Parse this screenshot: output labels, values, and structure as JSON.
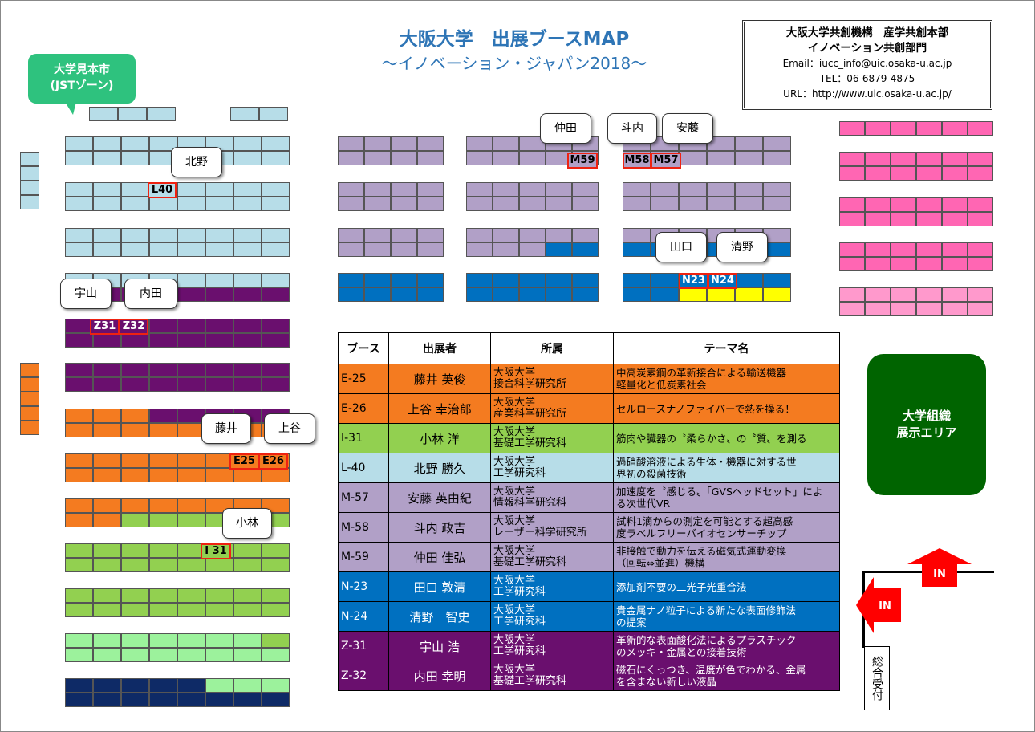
{
  "header": {
    "title": "大阪大学　出展ブースMAP",
    "subtitle": "～イノベーション・ジャパン2018～"
  },
  "contact": {
    "org1": "大阪大学共創機構　産学共創本部",
    "org2": "イノベーション共創部門",
    "email": "Email：iucc_info@uic.osaka-u.ac.jp",
    "tel": "TEL：06-6879-4875",
    "url": "URL：http://www.uic.osaka-u.ac.jp/"
  },
  "zones": {
    "jst_line1": "大学見本市",
    "jst_line2": "(JSTゾーン)",
    "exhibit_line1": "大学組織",
    "exhibit_line2": "展示エリア",
    "reception": "総合受付",
    "in_label": "IN"
  },
  "colors": {
    "lightblue": "#b7dde8",
    "lavender": "#b1a0c7",
    "blue": "#0070c0",
    "purple": "#6a0f6e",
    "orange": "#f47b20",
    "green": "#92d050",
    "lightgreen": "#9cf29c",
    "navy": "#0e2a66",
    "pink": "#ff66b3",
    "lightpink": "#ff99cc",
    "yellow": "#ffff00",
    "red": "#e21",
    "darkgreen": "#006400"
  },
  "callouts": [
    {
      "id": "kitano",
      "label": "北野"
    },
    {
      "id": "nakata",
      "label": "仲田"
    },
    {
      "id": "tonouchi",
      "label": "斗内"
    },
    {
      "id": "ando",
      "label": "安藤"
    },
    {
      "id": "taguchi",
      "label": "田口"
    },
    {
      "id": "kiyono",
      "label": "清野"
    },
    {
      "id": "uyama",
      "label": "宇山"
    },
    {
      "id": "uchida",
      "label": "内田"
    },
    {
      "id": "fujii",
      "label": "藤井"
    },
    {
      "id": "kamitani",
      "label": "上谷"
    },
    {
      "id": "kobayashi",
      "label": "小林"
    }
  ],
  "tags": [
    {
      "id": "L40",
      "label": "L40"
    },
    {
      "id": "M59",
      "label": "M59"
    },
    {
      "id": "M58",
      "label": "M58"
    },
    {
      "id": "M57",
      "label": "M57"
    },
    {
      "id": "N23",
      "label": "N23"
    },
    {
      "id": "N24",
      "label": "N24"
    },
    {
      "id": "Z31",
      "label": "Z31"
    },
    {
      "id": "Z32",
      "label": "Z32"
    },
    {
      "id": "E25",
      "label": "E25"
    },
    {
      "id": "E26",
      "label": "E26"
    },
    {
      "id": "I31",
      "label": "I 31"
    }
  ],
  "table": {
    "headers": [
      "ブース",
      "出展者",
      "所属",
      "テーマ名"
    ],
    "rows": [
      {
        "booth": "E-25",
        "name": "藤井 英俊",
        "aff1": "大阪大学",
        "aff2": "接合科学研究所",
        "theme1": "中高炭素鋼の革新接合による輸送機器",
        "theme2": "軽量化と低炭素社会",
        "color": "#f47b20",
        "text": "#000"
      },
      {
        "booth": "E-26",
        "name": "上谷 幸治郎",
        "aff1": "大阪大学",
        "aff2": "産業科学研究所",
        "theme1": "セルロースナノファイバーで熱を操る！",
        "theme2": "",
        "color": "#f47b20",
        "text": "#000"
      },
      {
        "booth": "I-31",
        "name": "小林 洋",
        "aff1": "大阪大学",
        "aff2": "基礎工学研究科",
        "theme1": "筋肉や臓器の〝柔らかさ〟の〝質〟を測る",
        "theme2": "",
        "color": "#92d050",
        "text": "#000"
      },
      {
        "booth": "L-40",
        "name": "北野 勝久",
        "aff1": "大阪大学",
        "aff2": "工学研究科",
        "theme1": "過硝酸溶液による生体・機器に対する世",
        "theme2": "界初の殺菌技術",
        "color": "#b7dde8",
        "text": "#000"
      },
      {
        "booth": "M-57",
        "name": "安藤 英由紀",
        "aff1": "大阪大学",
        "aff2": "情報科学研究科",
        "theme1": "加速度を〝感じる〟「GVSヘッドセット」によ",
        "theme2": "る次世代VR",
        "color": "#b1a0c7",
        "text": "#000"
      },
      {
        "booth": "M-58",
        "name": "斗内 政吉",
        "aff1": "大阪大学",
        "aff2": "レーザー科学研究所",
        "theme1": "試料1滴からの測定を可能とする超高感",
        "theme2": "度ラベルフリーバイオセンサーチップ",
        "color": "#b1a0c7",
        "text": "#000"
      },
      {
        "booth": "M-59",
        "name": "仲田 佳弘",
        "aff1": "大阪大学",
        "aff2": "基礎工学研究科",
        "theme1": "非接触で動力を伝える磁気式運動変換",
        "theme2": "（回転⇔並進）機構",
        "color": "#b1a0c7",
        "text": "#000"
      },
      {
        "booth": "N-23",
        "name": "田口 敦清",
        "aff1": "大阪大学",
        "aff2": "工学研究科",
        "theme1": "添加剤不要の二光子光重合法",
        "theme2": "",
        "color": "#0070c0",
        "text": "#fff"
      },
      {
        "booth": "N-24",
        "name": "清野　智史",
        "aff1": "大阪大学",
        "aff2": "工学研究科",
        "theme1": "貴金属ナノ粒子による新たな表面修飾法",
        "theme2": "の提案",
        "color": "#0070c0",
        "text": "#fff"
      },
      {
        "booth": "Z-31",
        "name": "宇山 浩",
        "aff1": "大阪大学",
        "aff2": "工学研究科",
        "theme1": "革新的な表面酸化法によるプラスチック",
        "theme2": "のメッキ・金属との接着技術",
        "color": "#6a0f6e",
        "text": "#fff"
      },
      {
        "booth": "Z-32",
        "name": "内田 幸明",
        "aff1": "大阪大学",
        "aff2": "基礎工学研究科",
        "theme1": "磁石にくっつき、温度が色でわかる、金属",
        "theme2": "を含まない新しい液晶",
        "color": "#6a0f6e",
        "text": "#fff"
      }
    ]
  }
}
